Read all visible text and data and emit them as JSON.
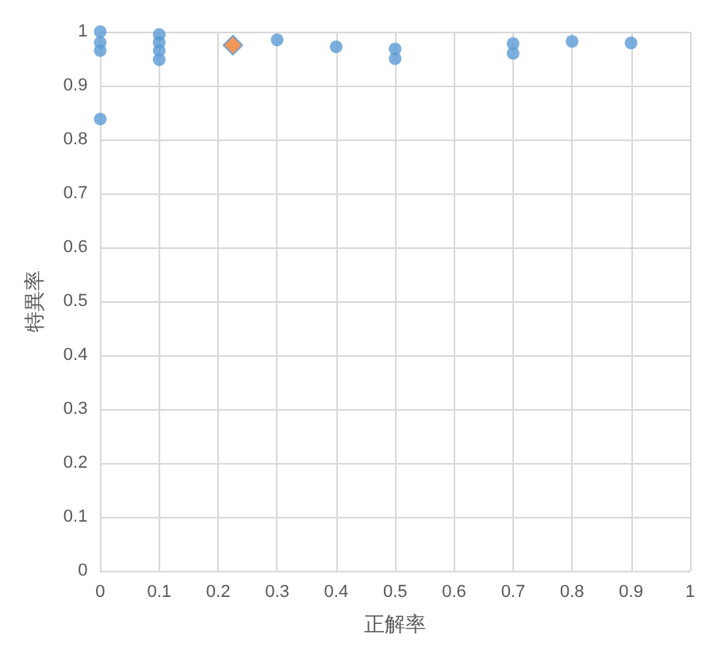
{
  "chart_data": {
    "type": "scatter",
    "xlabel": "正解率",
    "ylabel": "特異率",
    "xlim": [
      0,
      1
    ],
    "ylim": [
      0,
      1
    ],
    "xticks": [
      0,
      0.1,
      0.2,
      0.3,
      0.4,
      0.5,
      0.6,
      0.7,
      0.8,
      0.9,
      1
    ],
    "yticks": [
      0,
      0.1,
      0.2,
      0.3,
      0.4,
      0.5,
      0.6,
      0.7,
      0.8,
      0.9,
      1
    ],
    "grid": true,
    "series": [
      {
        "color": "#5b9bd5",
        "marker": "circle",
        "x": [
          0,
          0,
          0,
          0,
          0.1,
          0.1,
          0.1,
          0.1,
          0.3,
          0.4,
          0.5,
          0.5,
          0.7,
          0.7,
          0.8,
          0.9
        ],
        "values": [
          1.0,
          0.98,
          0.965,
          0.838,
          0.995,
          0.98,
          0.965,
          0.948,
          0.985,
          0.972,
          0.968,
          0.95,
          0.978,
          0.96,
          0.982,
          0.979
        ]
      },
      {
        "color": "#ed7d31",
        "marker": "diamond",
        "x": [
          0.225
        ],
        "values": [
          0.975
        ]
      }
    ]
  }
}
